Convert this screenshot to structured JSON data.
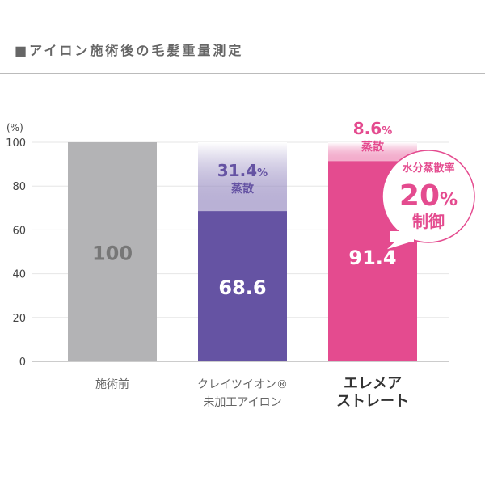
{
  "header": {
    "title": "■アイロン施術後の毛髪重量測定"
  },
  "chart_data": {
    "type": "bar",
    "ylabel": "(%)",
    "ylim": [
      0,
      100
    ],
    "yticks": [
      0,
      20,
      40,
      60,
      80,
      100
    ],
    "grid": true,
    "categories": [
      [
        "施術前"
      ],
      [
        "クレイツイオン®",
        "未加工アイロン"
      ],
      [
        "エレメア",
        "ストレート"
      ]
    ],
    "values": [
      100,
      68.6,
      91.4
    ],
    "value_labels": [
      "100",
      "68.6",
      "91.4"
    ],
    "evaporation": [
      null,
      31.4,
      8.6
    ],
    "evaporation_labels": [
      null,
      {
        "value": "31.4",
        "unit": "%",
        "text": "蒸散"
      },
      {
        "value": "8.6",
        "unit": "%",
        "text": "蒸散"
      }
    ],
    "colors": [
      "#b3b3b5",
      "#6553a3",
      "#e44b8f"
    ],
    "callout": {
      "line1": "水分蒸散率",
      "value": "20",
      "unit": "%",
      "line2": "制御",
      "color": "#e44b8f"
    }
  }
}
